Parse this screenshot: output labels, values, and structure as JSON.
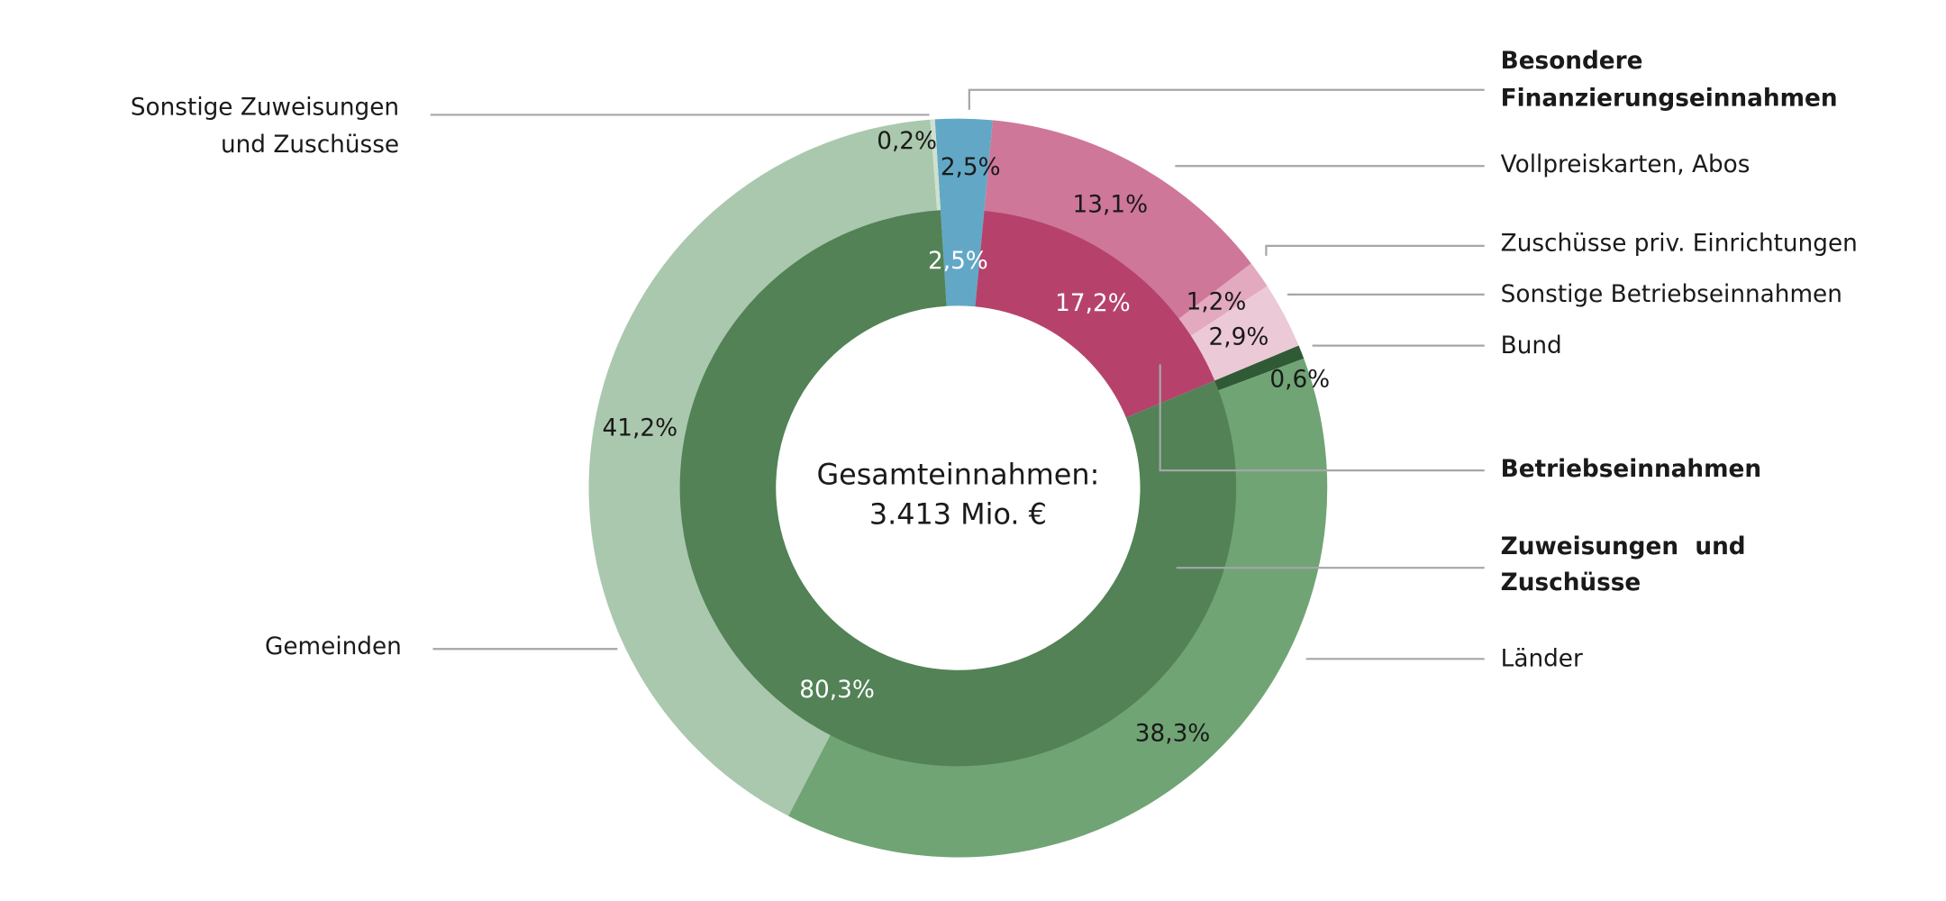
{
  "chart_data": {
    "type": "pie",
    "subtype": "double-donut",
    "center_label": [
      "Gesamteinnahmen:",
      "3.413 Mio. €"
    ],
    "inner": [
      {
        "name": "Besondere Finanzierungseinnahmen",
        "value": 2.5,
        "label": "2,5%",
        "color": "#62a8c6"
      },
      {
        "name": "Betriebseinnahmen",
        "value": 17.2,
        "label": "17,2%",
        "color": "#b6426c"
      },
      {
        "name": "Zuweisungen und Zuschüsse",
        "value": 80.3,
        "label": "80,3%",
        "color": "#528256"
      }
    ],
    "outer": [
      {
        "name": "Besondere Finanzierungseinnahmen",
        "value": 2.5,
        "label": "2,5%",
        "color": "#62a8c6"
      },
      {
        "name": "Vollpreiskarten, Abos",
        "value": 13.1,
        "label": "13,1%",
        "color": "#cf7799"
      },
      {
        "name": "Zuschüsse priv. Einrichtungen",
        "value": 1.2,
        "label": "1,2%",
        "color": "#e3a9bf"
      },
      {
        "name": "Sonstige Betriebseinnahmen",
        "value": 2.9,
        "label": "2,9%",
        "color": "#ecc9d6"
      },
      {
        "name": "Bund",
        "value": 0.6,
        "label": "0,6%",
        "color": "#2f5a35"
      },
      {
        "name": "Länder",
        "value": 38.3,
        "label": "38,3%",
        "color": "#70a474"
      },
      {
        "name": "Gemeinden",
        "value": 41.2,
        "label": "41,2%",
        "color": "#aac8ad"
      },
      {
        "name": "Sonstige Zuweisungen und Zuschüsse",
        "value": 0.2,
        "label": "0,2%",
        "color": "#cfe0cf"
      }
    ],
    "callouts": {
      "sonstige_zuweisungen": [
        "Sonstige Zuweisungen",
        "und Zuschüsse"
      ],
      "besondere": [
        "Besondere",
        "Finanzierungseinnahmen"
      ],
      "vollpreis": "Vollpreiskarten, Abos",
      "zuschuesse_priv": "Zuschüsse priv. Einrichtungen",
      "sonstige_betrieb": "Sonstige Betriebseinnahmen",
      "bund": "Bund",
      "betriebseinnahmen": "Betriebseinnahmen",
      "zuweisungen": [
        "Zuweisungen  und",
        "Zuschüsse"
      ],
      "laender": "Länder",
      "gemeinden": "Gemeinden"
    }
  }
}
